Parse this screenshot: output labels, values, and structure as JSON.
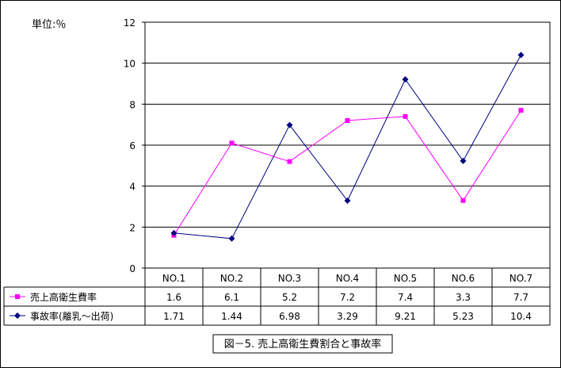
{
  "chart_data": {
    "type": "line",
    "unit_label": "単位:％",
    "categories": [
      "NO.1",
      "NO.2",
      "NO.3",
      "NO.4",
      "NO.5",
      "NO.6",
      "NO.7"
    ],
    "ylim": [
      0,
      12
    ],
    "yticks": [
      "0",
      "2",
      "4",
      "6",
      "8",
      "10",
      "12"
    ],
    "grid": true,
    "series": [
      {
        "name": "売上高衛生費率",
        "color": "#ff00ff",
        "marker": "square",
        "values": [
          1.6,
          6.1,
          5.2,
          7.2,
          7.4,
          3.3,
          7.7
        ],
        "labels": [
          "1.6",
          "6.1",
          "5.2",
          "7.2",
          "7.4",
          "3.3",
          "7.7"
        ]
      },
      {
        "name": "事故率(離乳～出荷)",
        "color": "#000080",
        "marker": "diamond",
        "values": [
          1.71,
          1.44,
          6.98,
          3.29,
          9.21,
          5.23,
          10.4
        ],
        "labels": [
          "1.71",
          "1.44",
          "6.98",
          "3.29",
          "9.21",
          "5.23",
          "10.4"
        ]
      }
    ],
    "caption": "図－5. 売上高衛生費割合と事故率"
  }
}
